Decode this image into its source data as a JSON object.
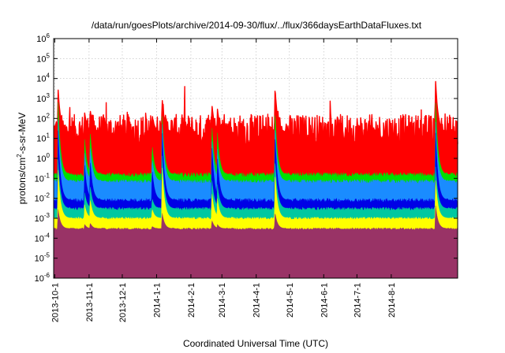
{
  "chart_data": {
    "type": "area",
    "title": "/data/run/goesPlots/archive/2014-09-30/flux/../flux/366daysEarthDataFluxes.txt",
    "xlabel": "Coordinated Universal Time (UTC)",
    "ylabel_parts": [
      "protons/cm",
      "2",
      "-s-sr-MeV"
    ],
    "y_scale": "log",
    "ylim": [
      1e-06,
      1000000.0
    ],
    "y_ticks": [
      {
        "base": "10",
        "exp": "-6",
        "value": 1e-06
      },
      {
        "base": "10",
        "exp": "-5",
        "value": 1e-05
      },
      {
        "base": "10",
        "exp": "-4",
        "value": 0.0001
      },
      {
        "base": "10",
        "exp": "-3",
        "value": 0.001
      },
      {
        "base": "10",
        "exp": "-2",
        "value": 0.01
      },
      {
        "base": "10",
        "exp": "-1",
        "value": 0.1
      },
      {
        "base": "10",
        "exp": "0",
        "value": 1
      },
      {
        "base": "10",
        "exp": "1",
        "value": 10
      },
      {
        "base": "10",
        "exp": "2",
        "value": 100
      },
      {
        "base": "10",
        "exp": "3",
        "value": 1000
      },
      {
        "base": "10",
        "exp": "4",
        "value": 10000
      },
      {
        "base": "10",
        "exp": "5",
        "value": 100000
      },
      {
        "base": "10",
        "exp": "6",
        "value": 1000000
      }
    ],
    "xlim": [
      "2013-09-30",
      "2014-09-30"
    ],
    "x_ticks": [
      "2013-10-1",
      "2013-11-1",
      "2013-12-1",
      "2014-1-1",
      "2014-2-1",
      "2014-3-1",
      "2014-4-1",
      "2014-5-1",
      "2014-6-1",
      "2014-7-1",
      "2014-8-1"
    ],
    "x_tick_dates": [
      "2013-10-01",
      "2013-11-01",
      "2013-12-01",
      "2014-01-01",
      "2014-02-01",
      "2014-03-01",
      "2014-04-01",
      "2014-05-01",
      "2014-06-01",
      "2014-07-01",
      "2014-08-01"
    ],
    "grid": true,
    "event_dates": [
      "2013-10-04",
      "2013-10-28",
      "2013-11-02",
      "2013-12-28",
      "2014-01-06",
      "2014-02-20",
      "2014-02-25",
      "2014-04-18",
      "2014-09-10"
    ],
    "series": [
      {
        "color": "#ff0000",
        "baseline": 20,
        "noise_decades": 0.9,
        "event_peaks": [
          3000,
          200,
          300,
          150,
          1000,
          500,
          300,
          4000,
          10000
        ]
      },
      {
        "color": "#00e000",
        "baseline": 0.15,
        "noise_decades": 0.12,
        "event_peaks": [
          800,
          10,
          30,
          5,
          200,
          50,
          20,
          300,
          1000
        ]
      },
      {
        "color": "#1a8cff",
        "baseline": 0.07,
        "noise_decades": 0.1,
        "event_peaks": [
          100,
          2,
          5,
          1,
          80,
          10,
          3,
          50,
          100
        ]
      },
      {
        "color": "#0000e6",
        "baseline": 0.008,
        "noise_decades": 0.1,
        "event_peaks": [
          30,
          0.5,
          1,
          0.3,
          30,
          5,
          1,
          20,
          30
        ]
      },
      {
        "color": "#00c8a0",
        "baseline": 0.003,
        "noise_decades": 0.08,
        "event_peaks": [
          1,
          0.02,
          0.05,
          0.01,
          2,
          0.1,
          0.05,
          1,
          0.5
        ]
      },
      {
        "color": "#ffff00",
        "baseline": 0.001,
        "noise_decades": 0.06,
        "event_peaks": [
          0.3,
          0.005,
          0.01,
          0.003,
          0.5,
          0.02,
          0.01,
          0.2,
          0.1
        ]
      },
      {
        "color": "#993366",
        "baseline": 0.0003,
        "noise_decades": 0.05,
        "event_peaks": [
          0.003,
          0.0005,
          0.0006,
          0.0004,
          0.002,
          0.0008,
          0.0005,
          0.002,
          0.005
        ]
      }
    ]
  }
}
